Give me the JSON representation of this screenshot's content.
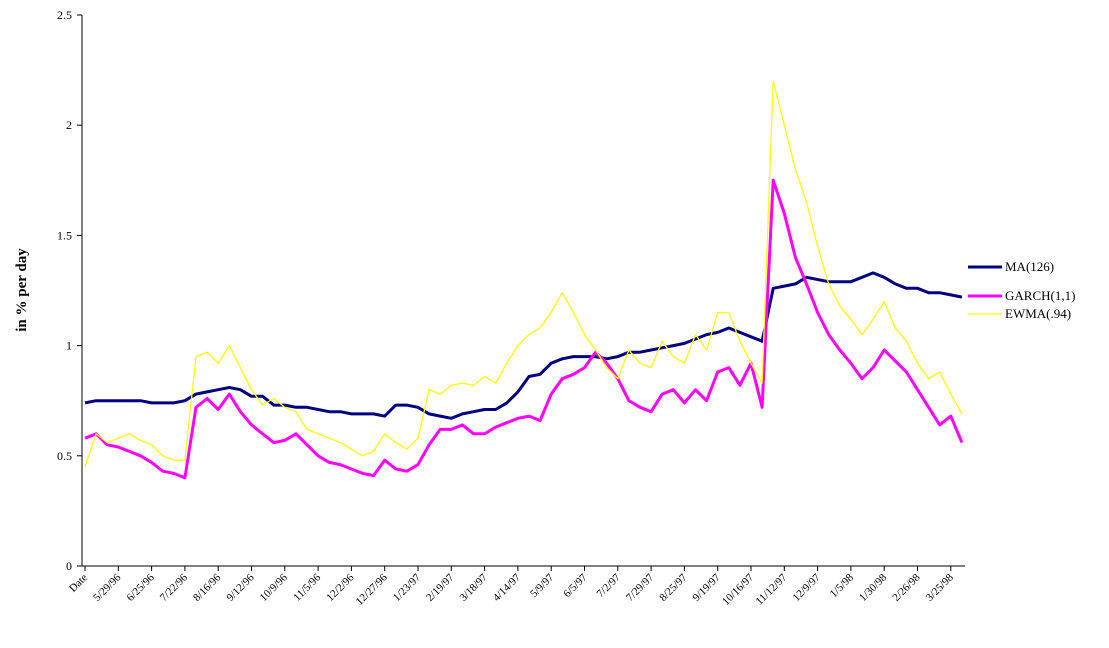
{
  "chart_data": {
    "type": "line",
    "y_label": "in % per day",
    "categories": [
      "Date",
      null,
      null,
      "5/29/96",
      null,
      null,
      "6/25/96",
      null,
      null,
      "7/22/96",
      null,
      null,
      "8/16/96",
      null,
      null,
      "9/12/96",
      null,
      null,
      "10/9/96",
      null,
      null,
      "11/5/96",
      null,
      null,
      "12/2/96",
      null,
      null,
      "12/27/96",
      null,
      null,
      "1/23/97",
      null,
      null,
      "2/19/97",
      null,
      null,
      "3/18/97",
      null,
      null,
      "4/14/97",
      null,
      null,
      "5/9/97",
      null,
      null,
      "6/5/97",
      null,
      null,
      "7/2/97",
      null,
      null,
      "7/29/97",
      null,
      null,
      "8/25/97",
      null,
      null,
      "9/19/97",
      null,
      null,
      "10/16/97",
      null,
      null,
      "11/12/97",
      null,
      null,
      "12/9/97",
      null,
      null,
      "1/5/98",
      null,
      null,
      "1/30/98",
      null,
      null,
      "2/26/98",
      null,
      null,
      "3/25/98",
      null
    ],
    "series": [
      {
        "name": "MA(126)",
        "color": "#000080",
        "width": 3,
        "values": [
          0.74,
          0.75,
          0.75,
          0.75,
          0.75,
          0.75,
          0.74,
          0.74,
          0.74,
          0.75,
          0.78,
          0.79,
          0.8,
          0.81,
          0.8,
          0.77,
          0.77,
          0.73,
          0.73,
          0.72,
          0.72,
          0.71,
          0.7,
          0.7,
          0.69,
          0.69,
          0.69,
          0.68,
          0.73,
          0.73,
          0.72,
          0.69,
          0.68,
          0.67,
          0.69,
          0.7,
          0.71,
          0.71,
          0.74,
          0.79,
          0.86,
          0.87,
          0.92,
          0.94,
          0.95,
          0.95,
          0.95,
          0.94,
          0.95,
          0.97,
          0.97,
          0.98,
          0.99,
          1.0,
          1.01,
          1.03,
          1.05,
          1.06,
          1.08,
          1.06,
          1.04,
          1.02,
          1.26,
          1.27,
          1.28,
          1.31,
          1.3,
          1.29,
          1.29,
          1.29,
          1.31,
          1.33,
          1.31,
          1.28,
          1.26,
          1.26,
          1.24,
          1.24,
          1.23,
          1.22
        ]
      },
      {
        "name": "GARCH(1,1)",
        "color": "#ff00ff",
        "width": 3,
        "values": [
          0.58,
          0.6,
          0.55,
          0.54,
          0.52,
          0.5,
          0.47,
          0.43,
          0.42,
          0.4,
          0.72,
          0.76,
          0.71,
          0.78,
          0.7,
          0.64,
          0.6,
          0.56,
          0.57,
          0.6,
          0.55,
          0.5,
          0.47,
          0.46,
          0.44,
          0.42,
          0.41,
          0.48,
          0.44,
          0.43,
          0.46,
          0.55,
          0.62,
          0.62,
          0.64,
          0.6,
          0.6,
          0.63,
          0.65,
          0.67,
          0.68,
          0.66,
          0.78,
          0.85,
          0.87,
          0.9,
          0.97,
          0.92,
          0.85,
          0.75,
          0.72,
          0.7,
          0.78,
          0.8,
          0.74,
          0.8,
          0.75,
          0.88,
          0.9,
          0.82,
          0.92,
          0.72,
          1.75,
          1.6,
          1.4,
          1.28,
          1.15,
          1.05,
          0.98,
          0.92,
          0.85,
          0.9,
          0.98,
          0.93,
          0.88,
          0.8,
          0.72,
          0.64,
          0.68,
          0.56
        ]
      },
      {
        "name": "EWMA(.94)",
        "color": "#ffff00",
        "width": 1.3,
        "values": [
          0.45,
          0.6,
          0.56,
          0.58,
          0.6,
          0.57,
          0.55,
          0.5,
          0.48,
          0.48,
          0.95,
          0.97,
          0.92,
          1.0,
          0.9,
          0.8,
          0.73,
          0.76,
          0.72,
          0.7,
          0.62,
          0.6,
          0.58,
          0.56,
          0.53,
          0.5,
          0.52,
          0.6,
          0.56,
          0.53,
          0.58,
          0.8,
          0.78,
          0.82,
          0.83,
          0.82,
          0.86,
          0.83,
          0.92,
          1.0,
          1.05,
          1.08,
          1.15,
          1.24,
          1.15,
          1.05,
          0.98,
          0.9,
          0.85,
          0.98,
          0.92,
          0.9,
          1.02,
          0.95,
          0.92,
          1.05,
          0.98,
          1.15,
          1.15,
          1.02,
          0.92,
          0.83,
          2.2,
          2.0,
          1.8,
          1.65,
          1.45,
          1.28,
          1.18,
          1.12,
          1.05,
          1.12,
          1.2,
          1.08,
          1.02,
          0.92,
          0.85,
          0.88,
          0.78,
          0.69
        ]
      }
    ],
    "ylim": [
      0,
      2.5
    ],
    "yticks": [
      0,
      0.5,
      1,
      1.5,
      2,
      2.5
    ],
    "grid": false,
    "legend": "right"
  }
}
